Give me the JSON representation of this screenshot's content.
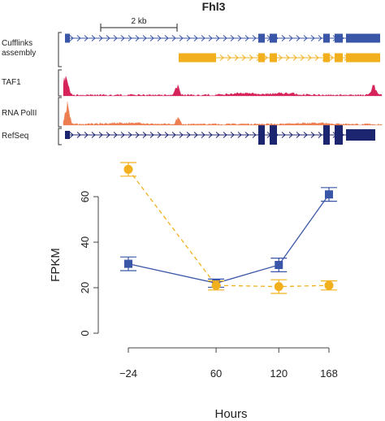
{
  "gene_title": "Fhl3",
  "scale_bar_label": "2 kb",
  "tracks": [
    {
      "label": "Cufflinks\nassembly"
    },
    {
      "label": "TAF1"
    },
    {
      "label": "RNA PolII"
    },
    {
      "label": "RefSeq"
    }
  ],
  "colors": {
    "blue": "#3a56a8",
    "orange": "#f2b01e",
    "taf1": "#d6245a",
    "polii": "#ec7e50",
    "refseq": "#1c2570",
    "axis": "#444444"
  },
  "chart_data": {
    "type": "line",
    "xlabel": "Hours",
    "ylabel": "FPKM",
    "x": [
      -24,
      60,
      120,
      168
    ],
    "x_tick_labels": [
      "−24",
      "60",
      "120",
      "168"
    ],
    "y_ticks": [
      0,
      20,
      40,
      60
    ],
    "ylim": [
      0,
      75
    ],
    "grid": false,
    "legend": "none",
    "series": [
      {
        "color": "#3a56a8",
        "marker": "square",
        "line": "solid",
        "values": [
          30.5,
          22,
          30,
          61
        ],
        "err": [
          3,
          1.8,
          3,
          3
        ]
      },
      {
        "color": "#f2b01e",
        "marker": "circle",
        "line": "dashed",
        "values": [
          72,
          21,
          20.5,
          21
        ],
        "err": [
          3,
          2,
          3,
          2
        ]
      }
    ]
  }
}
